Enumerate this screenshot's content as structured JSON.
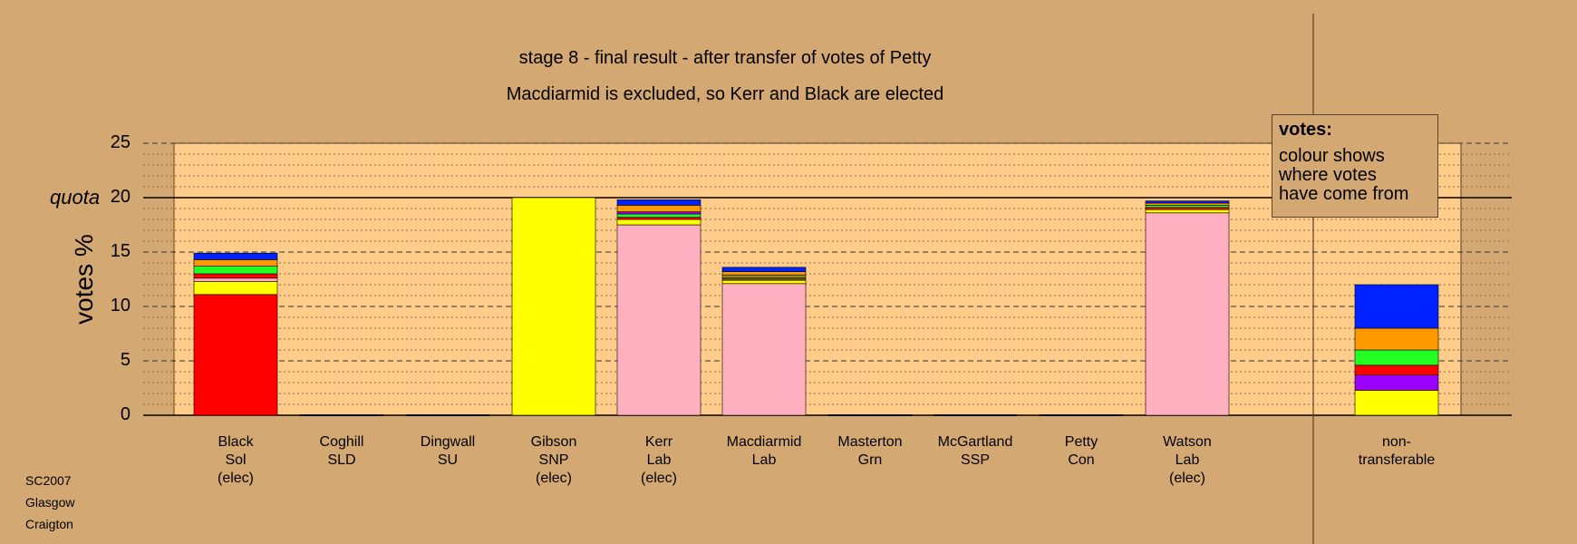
{
  "titles": {
    "line1": "stage 8 - final result - after transfer of votes of Petty",
    "line2": "Macdiarmid is excluded, so Kerr and Black are elected"
  },
  "legend": {
    "title": "votes:",
    "lines": [
      "colour shows",
      "where votes",
      "have come from"
    ]
  },
  "footer": [
    "SC2007",
    "Glasgow",
    "Craigton"
  ],
  "colors": {
    "background": "#d4a872",
    "plot_area": "#ffcc8a",
    "red": "#ff0000",
    "yellow": "#ffff00",
    "pink": "#ffb0c0",
    "green": "#22ff22",
    "orange": "#ff9900",
    "blue": "#0022ff",
    "purple": "#9900ff",
    "brown": "#7a4a1a",
    "olive": "#8a8a22"
  },
  "chart_data": {
    "type": "bar",
    "stacked": true,
    "ylabel": "votes %",
    "ylim": [
      0,
      25
    ],
    "yticks": [
      0,
      5,
      10,
      15,
      20,
      25
    ],
    "quota": 20,
    "quota_label": "quota",
    "grid": "dashed major every 5, dotted minor every 1",
    "categories": [
      {
        "lines": [
          "Black",
          "Sol",
          "(elec)"
        ],
        "segments": [
          {
            "color": "red",
            "value": 11.1
          },
          {
            "color": "yellow",
            "value": 1.2
          },
          {
            "color": "pink",
            "value": 0.3
          },
          {
            "color": "red",
            "value": 0.4
          },
          {
            "color": "green",
            "value": 0.7
          },
          {
            "color": "orange",
            "value": 0.6
          },
          {
            "color": "blue",
            "value": 0.6
          }
        ]
      },
      {
        "lines": [
          "Coghill",
          "SLD"
        ],
        "segments": []
      },
      {
        "lines": [
          "Dingwall",
          "SU"
        ],
        "segments": []
      },
      {
        "lines": [
          "Gibson",
          "SNP",
          "(elec)"
        ],
        "segments": [
          {
            "color": "yellow",
            "value": 20.0
          }
        ]
      },
      {
        "lines": [
          "Kerr",
          "Lab",
          "(elec)"
        ],
        "segments": [
          {
            "color": "pink",
            "value": 17.5
          },
          {
            "color": "yellow",
            "value": 0.5
          },
          {
            "color": "red",
            "value": 0.2
          },
          {
            "color": "green",
            "value": 0.3
          },
          {
            "color": "purple",
            "value": 0.2
          },
          {
            "color": "orange",
            "value": 0.6
          },
          {
            "color": "blue",
            "value": 0.5
          }
        ]
      },
      {
        "lines": [
          "Macdiarmid",
          "Lab"
        ],
        "segments": [
          {
            "color": "pink",
            "value": 12.1
          },
          {
            "color": "yellow",
            "value": 0.3
          },
          {
            "color": "brown",
            "value": 0.2
          },
          {
            "color": "olive",
            "value": 0.3
          },
          {
            "color": "orange",
            "value": 0.3
          },
          {
            "color": "blue",
            "value": 0.4
          }
        ]
      },
      {
        "lines": [
          "Masterton",
          "Grn"
        ],
        "segments": []
      },
      {
        "lines": [
          "McGartland",
          "SSP"
        ],
        "segments": []
      },
      {
        "lines": [
          "Petty",
          "Con"
        ],
        "segments": []
      },
      {
        "lines": [
          "Watson",
          "Lab",
          "(elec)"
        ],
        "segments": [
          {
            "color": "pink",
            "value": 18.6
          },
          {
            "color": "yellow",
            "value": 0.3
          },
          {
            "color": "red",
            "value": 0.2
          },
          {
            "color": "green",
            "value": 0.2
          },
          {
            "color": "orange",
            "value": 0.2
          },
          {
            "color": "blue",
            "value": 0.2
          }
        ]
      },
      {
        "lines": [
          "non-",
          "transferable"
        ],
        "segments": [
          {
            "color": "yellow",
            "value": 2.3
          },
          {
            "color": "purple",
            "value": 1.4
          },
          {
            "color": "red",
            "value": 0.9
          },
          {
            "color": "green",
            "value": 1.4
          },
          {
            "color": "orange",
            "value": 2.0
          },
          {
            "color": "blue",
            "value": 4.0
          }
        ]
      }
    ]
  }
}
